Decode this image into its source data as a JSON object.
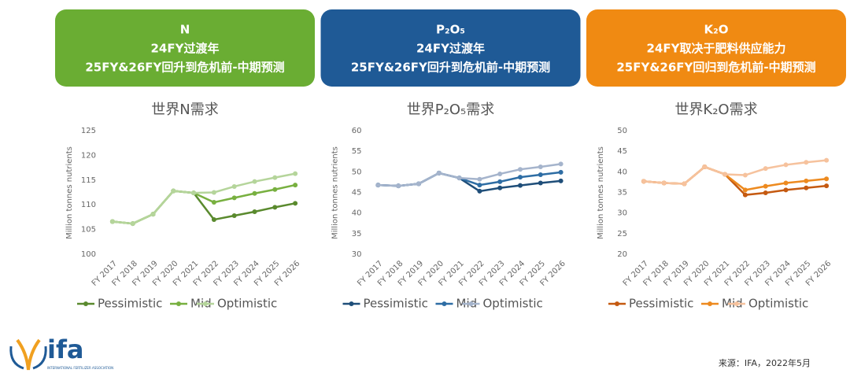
{
  "chart_data": [
    {
      "type": "line",
      "header": [
        "N",
        "24FY过渡年",
        "25FY&26FY回升到危机前-中期预测"
      ],
      "header_color": "#6aad33",
      "title": "世界N需求",
      "y_label": "Million tonnes nutrients",
      "categories": [
        "FY 2017",
        "FY 2018",
        "FY 2019",
        "FY 2020",
        "FY 2021",
        "FY 2022",
        "FY 2023",
        "FY 2024",
        "FY 2025",
        "FY 2026"
      ],
      "ylim": [
        100,
        125
      ],
      "yticks": [
        100,
        105,
        110,
        115,
        120,
        125
      ],
      "grid": false,
      "series": [
        {
          "name": "Pessimistic",
          "color": "#5a8a2e",
          "values": [
            106.6,
            106.2,
            108.1,
            112.8,
            112.4,
            107.0,
            107.8,
            108.6,
            109.5,
            110.3
          ]
        },
        {
          "name": "Mid",
          "color": "#78b040",
          "values": [
            106.6,
            106.2,
            108.1,
            112.8,
            112.4,
            110.5,
            111.4,
            112.3,
            113.1,
            114.0
          ]
        },
        {
          "name": "Optimistic",
          "color": "#b5d59b",
          "values": [
            106.6,
            106.2,
            108.1,
            112.8,
            112.4,
            112.5,
            113.7,
            114.7,
            115.5,
            116.3
          ]
        }
      ]
    },
    {
      "type": "line",
      "header": [
        "P₂O₅",
        "24FY过渡年",
        "25FY&26FY回升到危机前-中期预测"
      ],
      "header_color": "#1f5a96",
      "title": "世界P₂O₅需求",
      "y_label": "Million tonnes nutrients",
      "categories": [
        "FY 2017",
        "FY 2018",
        "FY 2019",
        "FY 2020",
        "FY 2021",
        "FY 2022",
        "FY 2023",
        "FY 2024",
        "FY 2025",
        "FY 2026"
      ],
      "ylim": [
        30,
        60
      ],
      "yticks": [
        30,
        35,
        40,
        45,
        50,
        55,
        60
      ],
      "grid": false,
      "series": [
        {
          "name": "Pessimistic",
          "color": "#1f4e79",
          "values": [
            46.8,
            46.6,
            47.1,
            49.7,
            48.5,
            45.3,
            46.1,
            46.7,
            47.3,
            47.8
          ]
        },
        {
          "name": "Mid",
          "color": "#2e6da4",
          "values": [
            46.8,
            46.6,
            47.1,
            49.7,
            48.5,
            46.8,
            47.6,
            48.7,
            49.3,
            49.9
          ]
        },
        {
          "name": "Optimistic",
          "color": "#a5b4cc",
          "values": [
            46.8,
            46.6,
            47.1,
            49.7,
            48.5,
            48.2,
            49.5,
            50.6,
            51.2,
            51.9
          ]
        }
      ]
    },
    {
      "type": "line",
      "header": [
        "K₂O",
        "24FY取决于肥料供应能力",
        "25FY&26FY回归到危机前-中期预测"
      ],
      "header_color": "#f08a12",
      "title": "世界K₂O需求",
      "y_label": "Million tonnes nutrients",
      "categories": [
        "FY 2017",
        "FY 2018",
        "FY 2019",
        "FY 2020",
        "FY 2021",
        "FY 2022",
        "FY 2023",
        "FY 2024",
        "FY 2025",
        "FY 2026"
      ],
      "ylim": [
        20,
        50
      ],
      "yticks": [
        20,
        25,
        30,
        35,
        40,
        45,
        50
      ],
      "grid": false,
      "series": [
        {
          "name": "Pessimistic",
          "color": "#c55a11",
          "values": [
            37.7,
            37.3,
            37.1,
            41.2,
            39.4,
            34.4,
            34.9,
            35.6,
            36.1,
            36.6
          ]
        },
        {
          "name": "Mid",
          "color": "#ed8a1f",
          "values": [
            37.7,
            37.3,
            37.1,
            41.2,
            39.4,
            35.6,
            36.5,
            37.3,
            37.8,
            38.3
          ]
        },
        {
          "name": "Optimistic",
          "color": "#f6c29d",
          "values": [
            37.7,
            37.3,
            37.1,
            41.2,
            39.4,
            39.2,
            40.8,
            41.7,
            42.3,
            42.8
          ]
        }
      ]
    }
  ],
  "logo": {
    "name": "ifa",
    "subtitle": "INTERNATIONAL FERTILIZER ASSOCIATION"
  },
  "source": "来源：IFA，2022年5月"
}
